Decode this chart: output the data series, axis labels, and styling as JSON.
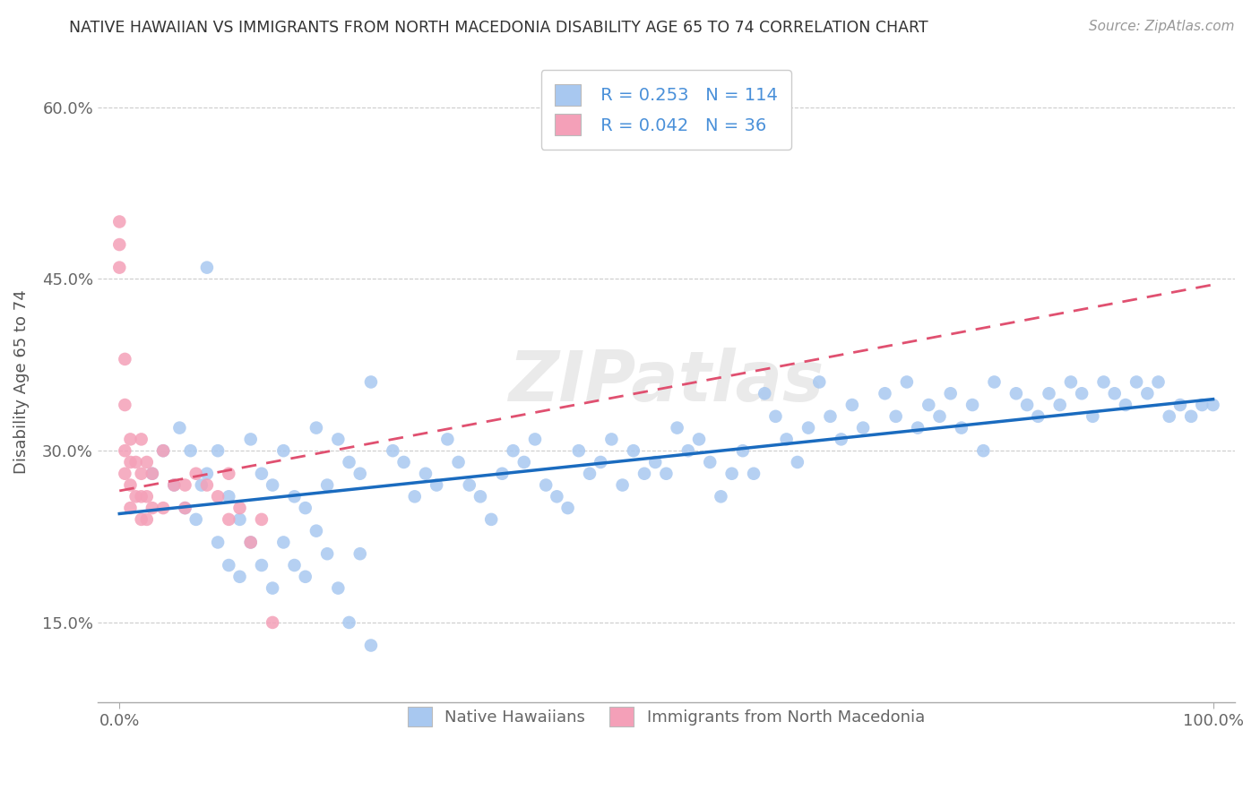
{
  "title": "NATIVE HAWAIIAN VS IMMIGRANTS FROM NORTH MACEDONIA DISABILITY AGE 65 TO 74 CORRELATION CHART",
  "source": "Source: ZipAtlas.com",
  "ylabel": "Disability Age 65 to 74",
  "xlabel": "",
  "xlim": [
    -0.02,
    1.02
  ],
  "ylim": [
    0.08,
    0.64
  ],
  "yticks": [
    0.15,
    0.3,
    0.45,
    0.6
  ],
  "ytick_labels": [
    "15.0%",
    "30.0%",
    "45.0%",
    "60.0%"
  ],
  "xticks": [
    0.0,
    1.0
  ],
  "xtick_labels": [
    "0.0%",
    "100.0%"
  ],
  "blue_R": 0.253,
  "blue_N": 114,
  "pink_R": 0.042,
  "pink_N": 36,
  "blue_color": "#a8c8f0",
  "pink_color": "#f4a0b8",
  "blue_line_color": "#1a6bbf",
  "pink_line_color": "#e05070",
  "legend_label_blue": "Native Hawaiians",
  "legend_label_pink": "Immigrants from North Macedonia",
  "watermark": "ZIPatlas",
  "blue_x": [
    0.03,
    0.04,
    0.05,
    0.055,
    0.06,
    0.065,
    0.07,
    0.075,
    0.08,
    0.09,
    0.1,
    0.11,
    0.12,
    0.13,
    0.14,
    0.15,
    0.16,
    0.17,
    0.18,
    0.19,
    0.2,
    0.21,
    0.22,
    0.23,
    0.25,
    0.26,
    0.27,
    0.28,
    0.29,
    0.3,
    0.31,
    0.32,
    0.33,
    0.34,
    0.35,
    0.36,
    0.37,
    0.38,
    0.39,
    0.4,
    0.41,
    0.42,
    0.43,
    0.44,
    0.45,
    0.46,
    0.47,
    0.48,
    0.49,
    0.5,
    0.51,
    0.52,
    0.53,
    0.54,
    0.55,
    0.56,
    0.57,
    0.58,
    0.59,
    0.6,
    0.61,
    0.62,
    0.63,
    0.64,
    0.65,
    0.66,
    0.67,
    0.68,
    0.7,
    0.71,
    0.72,
    0.73,
    0.74,
    0.75,
    0.76,
    0.77,
    0.78,
    0.79,
    0.8,
    0.82,
    0.83,
    0.84,
    0.85,
    0.86,
    0.87,
    0.88,
    0.89,
    0.9,
    0.91,
    0.92,
    0.93,
    0.94,
    0.95,
    0.96,
    0.97,
    0.98,
    0.99,
    1.0,
    0.08,
    0.09,
    0.1,
    0.11,
    0.12,
    0.13,
    0.14,
    0.15,
    0.16,
    0.17,
    0.18,
    0.19,
    0.2,
    0.21,
    0.22,
    0.23
  ],
  "blue_y": [
    0.28,
    0.3,
    0.27,
    0.32,
    0.25,
    0.3,
    0.24,
    0.27,
    0.28,
    0.3,
    0.26,
    0.24,
    0.31,
    0.28,
    0.27,
    0.3,
    0.26,
    0.25,
    0.32,
    0.27,
    0.31,
    0.29,
    0.28,
    0.36,
    0.3,
    0.29,
    0.26,
    0.28,
    0.27,
    0.31,
    0.29,
    0.27,
    0.26,
    0.24,
    0.28,
    0.3,
    0.29,
    0.31,
    0.27,
    0.26,
    0.25,
    0.3,
    0.28,
    0.29,
    0.31,
    0.27,
    0.3,
    0.28,
    0.29,
    0.28,
    0.32,
    0.3,
    0.31,
    0.29,
    0.26,
    0.28,
    0.3,
    0.28,
    0.35,
    0.33,
    0.31,
    0.29,
    0.32,
    0.36,
    0.33,
    0.31,
    0.34,
    0.32,
    0.35,
    0.33,
    0.36,
    0.32,
    0.34,
    0.33,
    0.35,
    0.32,
    0.34,
    0.3,
    0.36,
    0.35,
    0.34,
    0.33,
    0.35,
    0.34,
    0.36,
    0.35,
    0.33,
    0.36,
    0.35,
    0.34,
    0.36,
    0.35,
    0.36,
    0.33,
    0.34,
    0.33,
    0.34,
    0.34,
    0.46,
    0.22,
    0.2,
    0.19,
    0.22,
    0.2,
    0.18,
    0.22,
    0.2,
    0.19,
    0.23,
    0.21,
    0.18,
    0.15,
    0.21,
    0.13
  ],
  "pink_x": [
    0.0,
    0.0,
    0.0,
    0.005,
    0.005,
    0.005,
    0.005,
    0.01,
    0.01,
    0.01,
    0.01,
    0.015,
    0.015,
    0.02,
    0.02,
    0.02,
    0.02,
    0.025,
    0.025,
    0.025,
    0.03,
    0.03,
    0.04,
    0.04,
    0.05,
    0.06,
    0.06,
    0.07,
    0.08,
    0.09,
    0.1,
    0.1,
    0.11,
    0.12,
    0.13,
    0.14
  ],
  "pink_y": [
    0.5,
    0.48,
    0.46,
    0.38,
    0.34,
    0.3,
    0.28,
    0.31,
    0.29,
    0.27,
    0.25,
    0.29,
    0.26,
    0.31,
    0.28,
    0.26,
    0.24,
    0.29,
    0.26,
    0.24,
    0.28,
    0.25,
    0.3,
    0.25,
    0.27,
    0.27,
    0.25,
    0.28,
    0.27,
    0.26,
    0.28,
    0.24,
    0.25,
    0.22,
    0.24,
    0.15
  ],
  "blue_trend_x": [
    0.0,
    1.0
  ],
  "blue_trend_y": [
    0.245,
    0.345
  ],
  "pink_trend_x": [
    0.0,
    1.0
  ],
  "pink_trend_y": [
    0.265,
    0.445
  ]
}
